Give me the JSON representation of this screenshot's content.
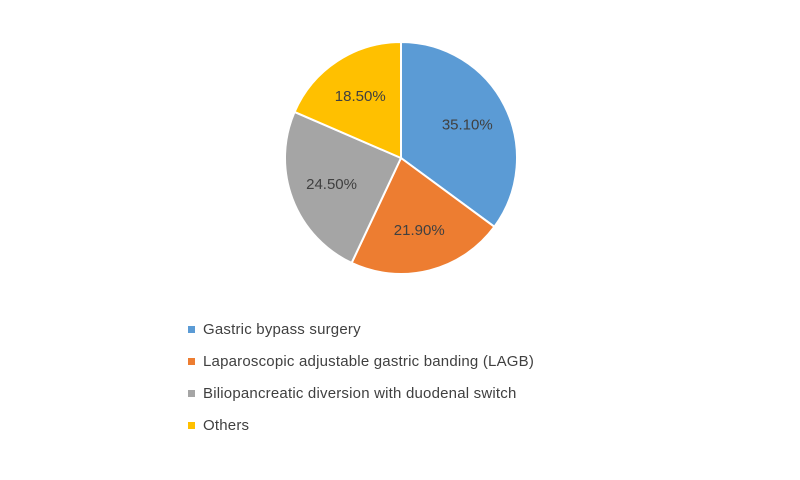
{
  "chart_data": {
    "type": "pie",
    "title": "",
    "categories": [
      "Gastric bypass surgery",
      "Laparoscopic adjustable gastric banding (LAGB)",
      "Biliopancreatic diversion with duodenal switch",
      "Others"
    ],
    "values": [
      35.1,
      21.9,
      24.5,
      18.5
    ],
    "data_labels": [
      "35.10%",
      "21.90%",
      "24.50%",
      "18.50%"
    ],
    "colors": [
      "#5B9BD5",
      "#ED7D31",
      "#A5A5A5",
      "#FFC000"
    ],
    "legend_position": "bottom",
    "start_angle": "top, clockwise"
  }
}
